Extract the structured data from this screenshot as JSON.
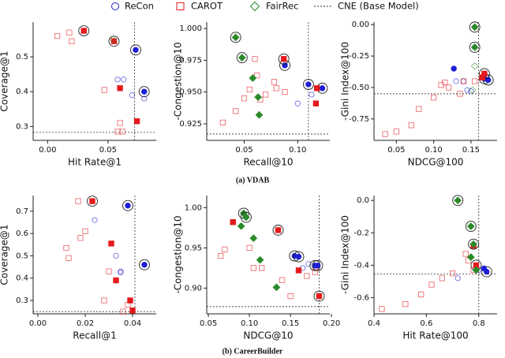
{
  "chart_data": [
    {
      "type": "scatter",
      "xlabel": "Hit Rate@1",
      "ylabel": "Coverage@1",
      "xlim": [
        -0.012,
        0.09
      ],
      "xticks": [
        {
          "value": 0,
          "label": "0.00"
        },
        0.05
      ],
      "ylim": [
        0.26,
        0.6
      ],
      "yticks": [
        0.3,
        0.4,
        0.5
      ],
      "baseline": {
        "name": "CNE (Base Model)",
        "x": 0.072,
        "y": 0.283
      },
      "series": [
        {
          "name": "ReCon",
          "color": "#1f1fd6",
          "marker": "circle",
          "x": [
            0.073,
            0.08,
            0.08,
            0.058,
            0.063,
            0.07
          ],
          "y": [
            0.52,
            0.4,
            0.38,
            0.435,
            0.435,
            0.39
          ],
          "styles": [
            "ringed",
            "ringed",
            "open",
            "open",
            "open",
            "open"
          ]
        },
        {
          "name": "CAROT",
          "color": "#e31a1c",
          "marker": "square",
          "x": [
            0.03,
            0.055,
            0.008,
            0.018,
            0.02,
            0.047,
            0.06,
            0.06,
            0.058,
            0.062,
            0.074
          ],
          "y": [
            0.575,
            0.545,
            0.56,
            0.57,
            0.545,
            0.405,
            0.41,
            0.31,
            0.285,
            0.285,
            0.315
          ],
          "styles": [
            "ringed",
            "ringed",
            "open",
            "open",
            "open",
            "open",
            "filled",
            "open",
            "open",
            "open",
            "filled"
          ]
        },
        {
          "name": "FairRec",
          "color": "#2a8a2a",
          "marker": "diamond",
          "x": [
            0.054
          ],
          "y": [
            0.55
          ],
          "styles": [
            "open"
          ]
        }
      ]
    },
    {
      "type": "scatter",
      "xlabel": "Recall@10",
      "ylabel": "-Congestion@10",
      "xlim": [
        0.015,
        0.13
      ],
      "xticks": [
        0.05,
        {
          "value": 0.1,
          "label": "0.10"
        }
      ],
      "ylim": [
        0.912,
        1.005
      ],
      "yticks": [
        0.925,
        {
          "value": 0.95,
          "label": "0.950"
        },
        0.975,
        {
          "value": 1,
          "label": "1.000"
        }
      ],
      "baseline": {
        "name": "CNE (Base Model)",
        "x": 0.11,
        "y": 0.917
      },
      "series": [
        {
          "name": "ReCon",
          "color": "#1f1fd6",
          "marker": "circle",
          "x": [
            0.088,
            0.11,
            0.123,
            0.113,
            0.1
          ],
          "y": [
            0.971,
            0.956,
            0.953,
            0.948,
            0.941
          ],
          "styles": [
            "ringed",
            "ringed",
            "ringed",
            "open",
            "open"
          ]
        },
        {
          "name": "CAROT",
          "color": "#e31a1c",
          "marker": "square",
          "x": [
            0.087,
            0.06,
            0.062,
            0.078,
            0.08,
            0.088,
            0.07,
            0.065,
            0.05,
            0.055,
            0.118,
            0.117,
            0.03,
            0.042
          ],
          "y": [
            0.976,
            0.976,
            0.963,
            0.958,
            0.953,
            0.95,
            0.948,
            0.944,
            0.945,
            0.952,
            0.953,
            0.941,
            0.926,
            0.935
          ],
          "styles": [
            "ringed",
            "open",
            "open",
            "open",
            "open",
            "open",
            "open",
            "open",
            "open",
            "open",
            "filled",
            "filled",
            "open",
            "open"
          ]
        },
        {
          "name": "FairRec",
          "color": "#2a8a2a",
          "marker": "diamond",
          "x": [
            0.042,
            0.048,
            0.058,
            0.063,
            0.064
          ],
          "y": [
            0.993,
            0.977,
            0.961,
            0.946,
            0.932
          ],
          "styles": [
            "ringed",
            "ringed",
            "filled",
            "filled",
            "filled"
          ]
        }
      ]
    },
    {
      "type": "scatter",
      "xlabel": "NDCG@100",
      "ylabel": "-Gini Index@100",
      "xlim": [
        0.02,
        0.185
      ],
      "xticks": [
        0.05,
        {
          "value": 0.1,
          "label": "0.10"
        },
        0.15
      ],
      "ylim": [
        -0.92,
        0.02
      ],
      "yticks": [
        {
          "value": 0,
          "label": "0.00"
        },
        -0.25,
        {
          "value": -0.5,
          "label": "-0.50"
        },
        -0.75
      ],
      "baseline": {
        "name": "CNE (Base Model)",
        "x": 0.16,
        "y": -0.55
      },
      "series": [
        {
          "name": "ReCon",
          "color": "#1f1fd6",
          "marker": "circle",
          "x": [
            0.127,
            0.168,
            0.173,
            0.13,
            0.14,
            0.145,
            0.15
          ],
          "y": [
            -0.35,
            -0.43,
            -0.44,
            -0.45,
            -0.45,
            -0.52,
            -0.53
          ],
          "styles": [
            "filled",
            "ringed",
            "ringed",
            "open",
            "open",
            "open",
            "open"
          ]
        },
        {
          "name": "CAROT",
          "color": "#e31a1c",
          "marker": "square",
          "x": [
            0.168,
            0.165,
            0.035,
            0.05,
            0.07,
            0.08,
            0.1,
            0.11,
            0.115,
            0.12,
            0.135,
            0.14,
            0.155
          ],
          "y": [
            -0.39,
            -0.42,
            -0.87,
            -0.85,
            -0.8,
            -0.67,
            -0.58,
            -0.48,
            -0.46,
            -0.5,
            -0.55,
            -0.45,
            -0.45
          ],
          "styles": [
            "ringed",
            "filled",
            "open",
            "open",
            "open",
            "open",
            "open",
            "open",
            "open",
            "open",
            "open",
            "open",
            "open"
          ]
        },
        {
          "name": "FairRec",
          "color": "#2a8a2a",
          "marker": "diamond",
          "x": [
            0.155,
            0.155,
            0.155,
            0.152
          ],
          "y": [
            -0.02,
            -0.18,
            -0.33,
            -0.52
          ],
          "styles": [
            "ringed",
            "ringed",
            "open",
            "open"
          ]
        }
      ]
    },
    {
      "type": "scatter",
      "xlabel": "Recall@1",
      "ylabel": "Coverage@1",
      "xlim": [
        -0.002,
        0.05
      ],
      "xticks": [
        {
          "value": 0,
          "label": "0.00"
        },
        0.02,
        0.04
      ],
      "ylim": [
        0.24,
        0.77
      ],
      "yticks": [
        0.3,
        0.4,
        0.5,
        0.6,
        0.7
      ],
      "baseline": {
        "name": "CNE (Base Model)",
        "x": 0.041,
        "y": 0.25
      },
      "series": [
        {
          "name": "ReCon",
          "color": "#1f1fd6",
          "marker": "circle",
          "x": [
            0.038,
            0.045,
            0.024,
            0.033,
            0.035,
            0.035
          ],
          "y": [
            0.725,
            0.46,
            0.66,
            0.5,
            0.43,
            0.425
          ],
          "styles": [
            "ringed",
            "ringed",
            "open",
            "open",
            "open",
            "open"
          ]
        },
        {
          "name": "CAROT",
          "color": "#e31a1c",
          "marker": "square",
          "x": [
            0.023,
            0.017,
            0.02,
            0.018,
            0.012,
            0.013,
            0.031,
            0.033,
            0.03,
            0.028,
            0.038,
            0.039,
            0.04,
            0.036
          ],
          "y": [
            0.745,
            0.745,
            0.61,
            0.58,
            0.535,
            0.49,
            0.555,
            0.39,
            0.43,
            0.3,
            0.28,
            0.3,
            0.255,
            0.25
          ],
          "styles": [
            "ringed",
            "open",
            "open",
            "open",
            "open",
            "open",
            "filled",
            "filled",
            "open",
            "open",
            "open",
            "filled",
            "filled",
            "open"
          ]
        },
        {
          "name": "FairRec",
          "color": "#2a8a2a",
          "marker": "diamond",
          "x": [],
          "y": [],
          "styles": []
        }
      ]
    },
    {
      "type": "scatter",
      "xlabel": "NDCG@10",
      "ylabel": "-Congestion@10",
      "xlim": [
        0.048,
        0.198
      ],
      "xticks": [
        0.05,
        {
          "value": 0.1,
          "label": "0.10"
        },
        0.15,
        {
          "value": 0.2,
          "label": "0.20"
        }
      ],
      "ylim": [
        0.868,
        1.015
      ],
      "yticks": [
        {
          "value": 0.9,
          "label": "0.90"
        },
        0.95,
        {
          "value": 1,
          "label": "1.00"
        }
      ],
      "baseline": {
        "name": "CNE (Base Model)",
        "x": 0.185,
        "y": 0.877
      },
      "series": [
        {
          "name": "ReCon",
          "color": "#1f1fd6",
          "marker": "circle",
          "x": [
            0.155,
            0.16,
            0.18,
            0.183,
            0.172,
            0.165
          ],
          "y": [
            0.94,
            0.939,
            0.928,
            0.928,
            0.93,
            0.925
          ],
          "styles": [
            "ringed",
            "ringed",
            "ringed",
            "ringed",
            "open",
            "open"
          ]
        },
        {
          "name": "CAROT",
          "color": "#e31a1c",
          "marker": "square",
          "x": [
            0.135,
            0.185,
            0.08,
            0.07,
            0.065,
            0.1,
            0.105,
            0.115,
            0.14,
            0.15,
            0.16,
            0.17,
            0.18
          ],
          "y": [
            0.972,
            0.89,
            0.982,
            0.948,
            0.94,
            0.95,
            0.925,
            0.925,
            0.91,
            0.89,
            0.922,
            0.915,
            0.92
          ],
          "styles": [
            "ringed",
            "ringed",
            "filled",
            "open",
            "open",
            "open",
            "open",
            "open",
            "open",
            "open",
            "filled",
            "open",
            "open"
          ]
        },
        {
          "name": "FairRec",
          "color": "#2a8a2a",
          "marker": "diamond",
          "x": [
            0.093,
            0.096,
            0.09,
            0.105,
            0.113,
            0.133
          ],
          "y": [
            0.993,
            0.988,
            0.977,
            0.962,
            0.935,
            0.901
          ],
          "styles": [
            "ringed",
            "ringed",
            "filled",
            "filled",
            "filled",
            "filled"
          ]
        }
      ]
    },
    {
      "type": "scatter",
      "xlabel": "Hit Rate@100",
      "ylabel": "-Gini Index@100",
      "xlim": [
        0.4,
        0.87
      ],
      "xticks": [
        0.4,
        0.6,
        0.8
      ],
      "ylim": [
        -0.7,
        0.03
      ],
      "yticks": [
        {
          "value": 0,
          "label": "0.0"
        },
        -0.2,
        -0.4,
        -0.6
      ],
      "baseline": {
        "name": "CNE (Base Model)",
        "x": 0.8,
        "y": -0.455
      },
      "series": [
        {
          "name": "ReCon",
          "color": "#1f1fd6",
          "marker": "circle",
          "x": [
            0.83,
            0.82,
            0.72,
            0.8
          ],
          "y": [
            -0.44,
            -0.42,
            -0.48,
            -0.43
          ],
          "styles": [
            "ringed",
            "filled",
            "open",
            "open"
          ]
        },
        {
          "name": "CAROT",
          "color": "#e31a1c",
          "marker": "square",
          "x": [
            0.79,
            0.78,
            0.43,
            0.52,
            0.58,
            0.62,
            0.66,
            0.7,
            0.75,
            0.76,
            0.78
          ],
          "y": [
            -0.4,
            -0.28,
            -0.67,
            -0.64,
            -0.58,
            -0.52,
            -0.48,
            -0.45,
            -0.33,
            -0.37,
            -0.43
          ],
          "styles": [
            "ringed",
            "filled",
            "open",
            "open",
            "open",
            "open",
            "open",
            "open",
            "open",
            "open",
            "open"
          ]
        },
        {
          "name": "FairRec",
          "color": "#2a8a2a",
          "marker": "diamond",
          "x": [
            0.72,
            0.77,
            0.78,
            0.77,
            0.79
          ],
          "y": [
            0,
            -0.16,
            -0.27,
            -0.35,
            -0.43
          ],
          "styles": [
            "ringed",
            "ringed",
            "ringed",
            "filled",
            "filled"
          ]
        }
      ]
    }
  ],
  "captions": [
    "(a) VDAB",
    "(b) CareerBuilder"
  ]
}
